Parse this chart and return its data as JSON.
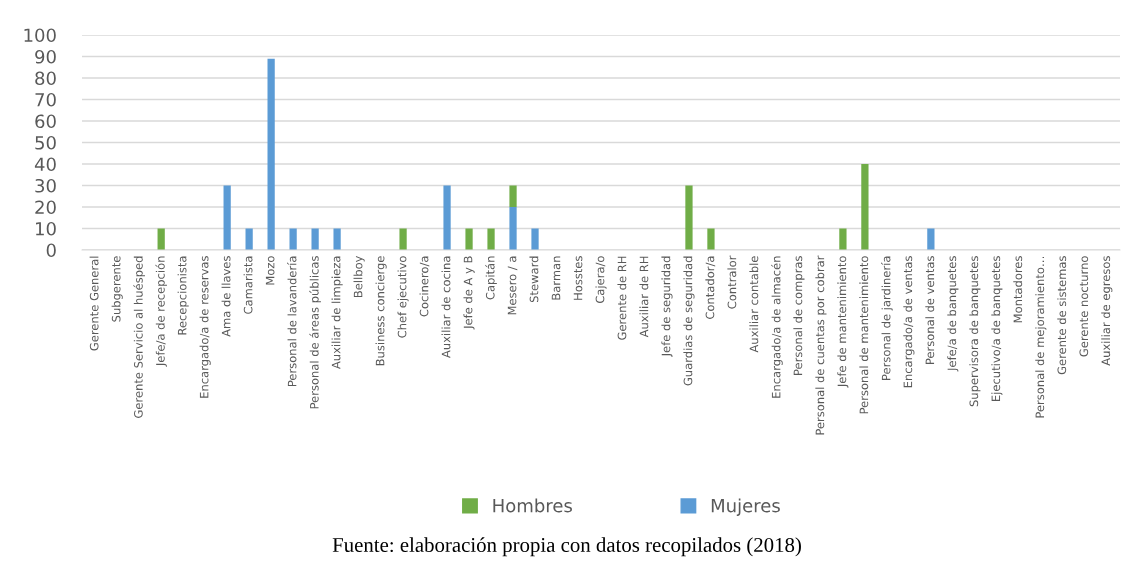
{
  "chart_data": {
    "type": "bar",
    "stacked": true,
    "categories": [
      "Gerente General",
      "Subgerente",
      "Gerente Servicio al huésped",
      "Jefe/a de recepción",
      "Recepcionista",
      "Encargado/a de reservas",
      "Ama de llaves",
      "Camarista",
      "Mozo",
      "Personal de lavandería",
      "Personal de áreas públicas",
      "Auxiliar de limpieza",
      "Bellboy",
      "Business concierge",
      "Chef ejecutivo",
      "Cocinero/a",
      "Auxiliar de cocina",
      "Jefe de A y B",
      "Capitán",
      "Mesero / a",
      "Steward",
      "Barman",
      "Hosstes",
      "Cajera/o",
      "Gerente de RH",
      "Auxiliar de RH",
      "Jefe de seguridad",
      "Guardias de seguridad",
      "Contador/a",
      "Contralor",
      "Auxiliar contable",
      "Encargado/a de almacén",
      "Personal de compras",
      "Personal de cuentas por cobrar",
      "Jefe de mantenimiento",
      "Personal de mantenimiento",
      "Personal de jardinería",
      "Encargado/a de ventas",
      "Personal de ventas",
      "Jefe/a de banquetes",
      "Supervisora de banquetes",
      "Ejecutivo/a de banquetes",
      "Montadores",
      "Personal de mejoramiento…",
      "Gerente de sistemas",
      "Gerente nocturno",
      "Auxiliar de egresos"
    ],
    "series": [
      {
        "name": "Mujeres",
        "color": "#5b9bd5",
        "values": [
          0,
          0,
          0,
          0,
          0,
          0,
          30,
          10,
          89,
          10,
          10,
          10,
          0,
          0,
          0,
          0,
          30,
          0,
          0,
          20,
          10,
          0,
          0,
          0,
          0,
          0,
          0,
          0,
          0,
          0,
          0,
          0,
          0,
          0,
          0,
          0,
          0,
          0,
          10,
          0,
          0,
          0,
          0,
          0,
          0,
          0,
          0
        ]
      },
      {
        "name": "Hombres",
        "color": "#70ad47",
        "values": [
          0,
          0,
          0,
          10,
          0,
          0,
          0,
          0,
          0,
          0,
          0,
          0,
          0,
          0,
          10,
          0,
          0,
          10,
          10,
          10,
          0,
          0,
          0,
          0,
          0,
          0,
          0,
          30,
          10,
          0,
          0,
          0,
          0,
          0,
          10,
          40,
          0,
          0,
          0,
          0,
          0,
          0,
          0,
          0,
          0,
          0,
          0
        ]
      }
    ],
    "ylim": [
      0,
      100
    ],
    "yticks": [
      0,
      10,
      20,
      30,
      40,
      50,
      60,
      70,
      80,
      90,
      100
    ],
    "grid": "y",
    "legend": "bottom",
    "annotations": [
      "Fuente: elaboración propia con datos recopilados (2018)"
    ]
  }
}
